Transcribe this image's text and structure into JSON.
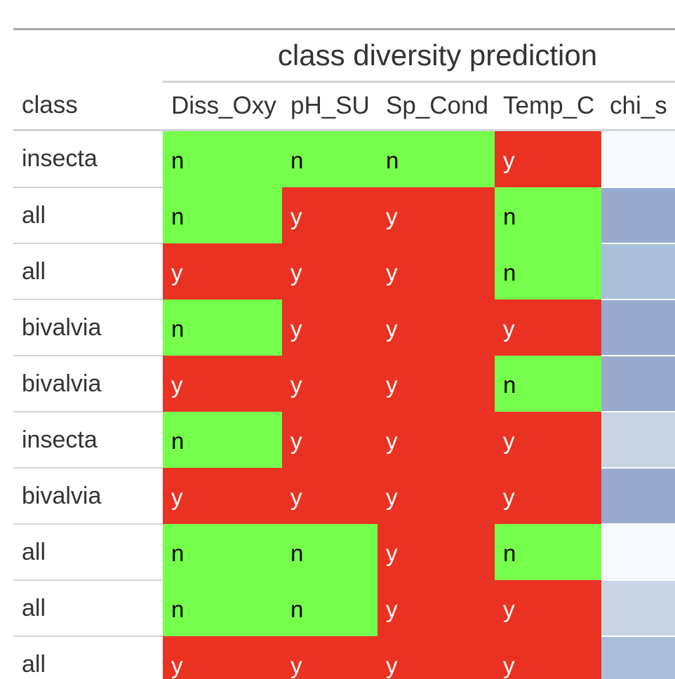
{
  "table": {
    "spanner_label": "class diversity prediction",
    "columns": [
      "class",
      "Diss_Oxy",
      "pH_SU",
      "Sp_Cond",
      "Temp_C",
      "chi_s"
    ],
    "colors": {
      "n": "#76fe4d",
      "y": "#ea3223"
    },
    "rows": [
      {
        "class": "insecta",
        "Diss_Oxy": "n",
        "pH_SU": "n",
        "Sp_Cond": "n",
        "Temp_C": "y",
        "chi_color": "#f7fafc"
      },
      {
        "class": "all",
        "Diss_Oxy": "n",
        "pH_SU": "y",
        "Sp_Cond": "y",
        "Temp_C": "n",
        "chi_color": "#98abcf"
      },
      {
        "class": "all",
        "Diss_Oxy": "y",
        "pH_SU": "y",
        "Sp_Cond": "y",
        "Temp_C": "n",
        "chi_color": "#a9bed9"
      },
      {
        "class": "bivalvia",
        "Diss_Oxy": "n",
        "pH_SU": "y",
        "Sp_Cond": "y",
        "Temp_C": "y",
        "chi_color": "#98abcf"
      },
      {
        "class": "bivalvia",
        "Diss_Oxy": "y",
        "pH_SU": "y",
        "Sp_Cond": "y",
        "Temp_C": "n",
        "chi_color": "#98abcf"
      },
      {
        "class": "insecta",
        "Diss_Oxy": "n",
        "pH_SU": "y",
        "Sp_Cond": "y",
        "Temp_C": "y",
        "chi_color": "#c6d4e3"
      },
      {
        "class": "bivalvia",
        "Diss_Oxy": "y",
        "pH_SU": "y",
        "Sp_Cond": "y",
        "Temp_C": "y",
        "chi_color": "#98abcf"
      },
      {
        "class": "all",
        "Diss_Oxy": "n",
        "pH_SU": "n",
        "Sp_Cond": "y",
        "Temp_C": "n",
        "chi_color": "#f7fafc"
      },
      {
        "class": "all",
        "Diss_Oxy": "n",
        "pH_SU": "n",
        "Sp_Cond": "y",
        "Temp_C": "y",
        "chi_color": "#c6d4e3"
      },
      {
        "class": "all",
        "Diss_Oxy": "y",
        "pH_SU": "y",
        "Sp_Cond": "y",
        "Temp_C": "y",
        "chi_color": "#a9bed9"
      }
    ]
  }
}
